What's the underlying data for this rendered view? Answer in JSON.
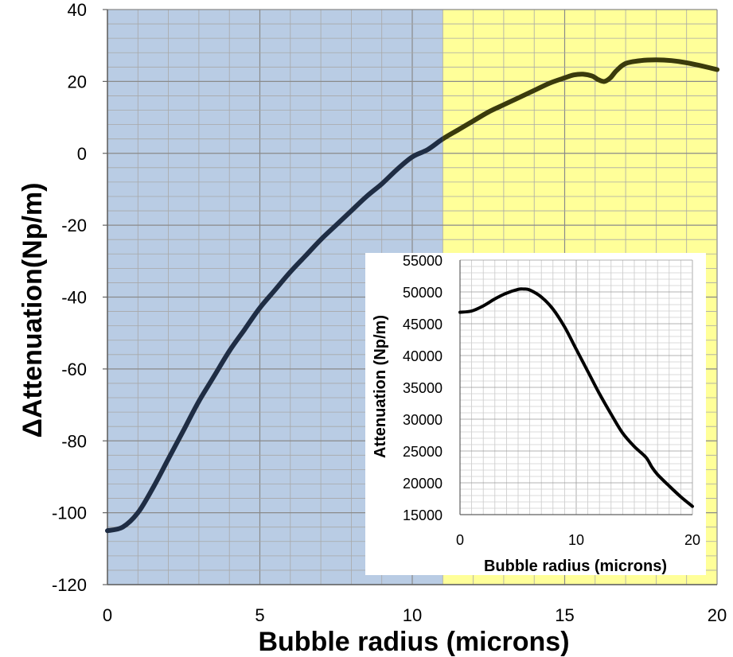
{
  "chart_data": [
    {
      "type": "line",
      "title": "",
      "xlabel": "Bubble radius (microns)",
      "ylabel": "ΔAttenuation(Np/m)",
      "xlim": [
        0,
        20
      ],
      "ylim": [
        -120,
        40
      ],
      "xticks": [
        0,
        5,
        10,
        15,
        20
      ],
      "yticks": [
        -120,
        -100,
        -80,
        -60,
        -40,
        -20,
        0,
        20,
        40
      ],
      "grid": true,
      "regions": [
        {
          "x_range": [
            0,
            11
          ],
          "color": "#b9cce4"
        },
        {
          "x_range": [
            11,
            20
          ],
          "color": "#ffff99"
        }
      ],
      "series": [
        {
          "color": "#1f2d44",
          "x": [
            0,
            0.5,
            1,
            1.5,
            2,
            2.5,
            3,
            3.5,
            4,
            4.5,
            5,
            5.5,
            6,
            6.5,
            7,
            7.5,
            8,
            8.5,
            9,
            9.5,
            10,
            10.5,
            11,
            11.5,
            12,
            12.5,
            13,
            13.5,
            14,
            14.5,
            15,
            15.3,
            15.6,
            15.9,
            16.1,
            16.3,
            16.5,
            16.7,
            17,
            17.5,
            18,
            18.5,
            19,
            19.5,
            20
          ],
          "values": [
            -105,
            -104,
            -100,
            -93,
            -85,
            -77,
            -69,
            -62,
            -55,
            -49,
            -43,
            -38,
            -33,
            -28.5,
            -24,
            -20,
            -16,
            -12,
            -8.5,
            -4.5,
            -1,
            1,
            4,
            6.5,
            9,
            11.5,
            13.5,
            15.5,
            17.5,
            19.5,
            21,
            21.8,
            22,
            21.5,
            20.5,
            20,
            21,
            23,
            25,
            25.8,
            26,
            25.8,
            25.2,
            24.3,
            23.3
          ]
        }
      ]
    },
    {
      "type": "line",
      "title": "",
      "xlabel": "Bubble radius (microns)",
      "ylabel": "Attenuation (Np/m)",
      "xlim": [
        0,
        20
      ],
      "ylim": [
        15000,
        55000
      ],
      "xticks": [
        0,
        10,
        20
      ],
      "yticks": [
        15000,
        20000,
        25000,
        30000,
        35000,
        40000,
        45000,
        50000,
        55000
      ],
      "grid": true,
      "series": [
        {
          "color": "#000000",
          "x": [
            0,
            1,
            2,
            3,
            4,
            5,
            5.5,
            6,
            7,
            8,
            9,
            10,
            11,
            12,
            13,
            14,
            15,
            16,
            16.5,
            17,
            18,
            19,
            20
          ],
          "values": [
            46800,
            47000,
            47800,
            48900,
            49800,
            50400,
            50450,
            50300,
            49200,
            47300,
            44500,
            41000,
            37500,
            34000,
            30800,
            27800,
            25700,
            24000,
            22500,
            21300,
            19500,
            17800,
            16300
          ]
        }
      ]
    }
  ]
}
